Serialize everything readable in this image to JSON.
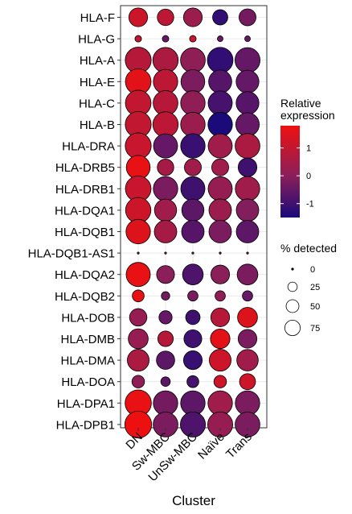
{
  "chart_data": {
    "type": "dotplot",
    "xlabel": "Cluster",
    "ylabel": "",
    "categories": [
      "DN",
      "Sw-MBC",
      "UnSw-MBC",
      "Naïve",
      "Trans"
    ],
    "genes": [
      "HLA-F",
      "HLA-G",
      "HLA-A",
      "HLA-E",
      "HLA-C",
      "HLA-B",
      "HLA-DRA",
      "HLA-DRB5",
      "HLA-DRB1",
      "HLA-DQA1",
      "HLA-DQB1",
      "HLA-DQB1-AS1",
      "HLA-DQA2",
      "HLA-DQB2",
      "HLA-DOB",
      "HLA-DMB",
      "HLA-DMA",
      "HLA-DOA",
      "HLA-DPA1",
      "HLA-DPB1"
    ],
    "expression": [
      [
        1.2,
        0.9,
        0.3,
        -1.2,
        -0.3
      ],
      [
        1.0,
        -0.5,
        1.2,
        -0.5,
        -0.5
      ],
      [
        0.8,
        0.6,
        0.1,
        -1.2,
        -0.5
      ],
      [
        1.6,
        0.9,
        -0.2,
        -0.7,
        -0.5
      ],
      [
        1.0,
        0.8,
        0.1,
        -0.9,
        -0.7
      ],
      [
        1.0,
        0.9,
        0.3,
        -1.5,
        -0.5
      ],
      [
        1.1,
        -0.5,
        -1.1,
        0.4,
        0.6
      ],
      [
        1.7,
        0.5,
        0.4,
        0.4,
        -1.0
      ],
      [
        1.1,
        -0.2,
        -1.0,
        0.2,
        0.4
      ],
      [
        1.2,
        0.4,
        -0.6,
        0.3,
        -0.1
      ],
      [
        1.5,
        0.5,
        -0.7,
        -0.2,
        -0.6
      ],
      [
        0.0,
        0.0,
        0.0,
        0.0,
        0.0
      ],
      [
        1.7,
        0.0,
        -0.8,
        0.0,
        -0.2
      ],
      [
        1.7,
        -0.3,
        -0.2,
        0.1,
        -0.5
      ],
      [
        0.2,
        -0.5,
        -1.0,
        0.8,
        1.5
      ],
      [
        0.2,
        0.8,
        -1.0,
        1.6,
        -0.2
      ],
      [
        0.6,
        -0.6,
        -1.1,
        1.2,
        0.4
      ],
      [
        0.1,
        -0.6,
        -0.9,
        1.2,
        1.2
      ],
      [
        1.7,
        -0.3,
        -0.6,
        0.4,
        -0.2
      ],
      [
        1.8,
        -0.2,
        -0.8,
        0.2,
        -0.2
      ]
    ],
    "pct_detected": [
      [
        40,
        30,
        40,
        25,
        32
      ],
      [
        3,
        3,
        3,
        2,
        2
      ],
      [
        82,
        78,
        74,
        80,
        76
      ],
      [
        80,
        72,
        68,
        64,
        62
      ],
      [
        80,
        74,
        72,
        70,
        62
      ],
      [
        82,
        78,
        72,
        72,
        66
      ],
      [
        82,
        70,
        72,
        70,
        74
      ],
      [
        68,
        30,
        32,
        32,
        40
      ],
      [
        80,
        72,
        70,
        70,
        72
      ],
      [
        78,
        58,
        58,
        60,
        60
      ],
      [
        72,
        60,
        60,
        60,
        60
      ],
      [
        0,
        0,
        0,
        0,
        0
      ],
      [
        70,
        36,
        50,
        40,
        50
      ],
      [
        14,
        6,
        10,
        10,
        10
      ],
      [
        34,
        18,
        22,
        40,
        46
      ],
      [
        46,
        26,
        36,
        44,
        40
      ],
      [
        56,
        38,
        40,
        56,
        54
      ],
      [
        16,
        8,
        14,
        16,
        28
      ],
      [
        84,
        72,
        72,
        72,
        72
      ],
      [
        88,
        74,
        76,
        76,
        74
      ]
    ],
    "color_legend": {
      "title": "Relative\nexpression",
      "min": -1.5,
      "max": 1.8,
      "ticks": [
        1,
        0,
        -1
      ],
      "low_color": "#1a0a7a",
      "mid_color": "#8a1f5a",
      "high_color": "#ee1010"
    },
    "size_legend": {
      "title": "% detected",
      "values": [
        0,
        25,
        50,
        75
      ]
    },
    "grid": true
  }
}
